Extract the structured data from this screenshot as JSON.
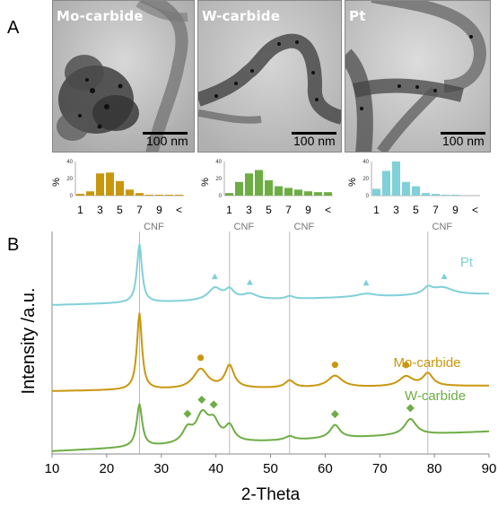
{
  "panel_labels": {
    "a": "A",
    "b": "B"
  },
  "tem_images": [
    {
      "label": "Mo-carbide",
      "scale": "100 nm"
    },
    {
      "label": "W-carbide",
      "scale": "100 nm"
    },
    {
      "label": "Pt",
      "scale": "100 nm"
    }
  ],
  "colors": {
    "mo": "#C9970E",
    "w": "#6DAD44",
    "pt": "#80D0D8",
    "cnf": "#AAAAAA"
  },
  "chart_data": [
    {
      "type": "bar",
      "title": "",
      "ylabel": "%",
      "ylim": [
        0,
        40
      ],
      "yticks": [
        "0",
        "20",
        "40"
      ],
      "categories": [
        "1",
        "2",
        "3",
        "4",
        "5",
        "6",
        "7",
        "8",
        "9",
        "10",
        "<"
      ],
      "xtick_labels": [
        "1",
        "3",
        "5",
        "7",
        "9",
        "<"
      ],
      "values": [
        2,
        5,
        26,
        27,
        17,
        7,
        3,
        1,
        1,
        1,
        1
      ],
      "color": "#C9970E"
    },
    {
      "type": "bar",
      "title": "",
      "ylabel": "%",
      "ylim": [
        0,
        40
      ],
      "yticks": [
        "0",
        "20",
        "40"
      ],
      "categories": [
        "1",
        "2",
        "3",
        "4",
        "5",
        "6",
        "7",
        "8",
        "9",
        "10",
        "<"
      ],
      "xtick_labels": [
        "1",
        "3",
        "5",
        "7",
        "9",
        "<"
      ],
      "values": [
        3,
        16,
        26,
        30,
        18,
        11,
        9,
        7,
        5,
        4,
        4
      ],
      "color": "#6DAD44"
    },
    {
      "type": "bar",
      "title": "",
      "ylabel": "%",
      "ylim": [
        0,
        40
      ],
      "yticks": [
        "0",
        "20",
        "40"
      ],
      "categories": [
        "1",
        "2",
        "3",
        "4",
        "5",
        "6",
        "7",
        "8",
        "9",
        "10",
        "<"
      ],
      "xtick_labels": [
        "1",
        "3",
        "5",
        "7",
        "9",
        "<"
      ],
      "values": [
        8,
        29,
        40,
        16,
        11,
        3,
        2,
        1,
        1,
        0,
        0
      ],
      "color": "#80D0D8"
    },
    {
      "type": "line",
      "xlabel": "2-Theta",
      "ylabel": "Intensity /a.u.",
      "xlim": [
        10,
        90
      ],
      "xticks": [
        10,
        20,
        30,
        40,
        50,
        60,
        70,
        80,
        90
      ],
      "yaxis_ticks": false,
      "reference_lines": [
        {
          "x": 26.0,
          "label": "CNF"
        },
        {
          "x": 42.5,
          "label": "CNF"
        },
        {
          "x": 53.5,
          "label": "CNF"
        },
        {
          "x": 78.8,
          "label": "CNF"
        }
      ],
      "series": [
        {
          "name": "Pt",
          "color": "#80D0D8",
          "baseline": 0.0,
          "peaks": [
            {
              "x": 26.0,
              "h": 6.2,
              "w": 0.55
            },
            {
              "x": 39.8,
              "h": 1.3,
              "w": 1.5
            },
            {
              "x": 42.5,
              "h": 1.0,
              "w": 1.0
            },
            {
              "x": 46.2,
              "h": 0.6,
              "w": 1.6
            },
            {
              "x": 53.5,
              "h": 0.3,
              "w": 0.8
            },
            {
              "x": 67.5,
              "h": 0.35,
              "w": 2.2
            },
            {
              "x": 78.8,
              "h": 0.7,
              "w": 1.0
            },
            {
              "x": 81.5,
              "h": 0.8,
              "w": 2.4
            }
          ],
          "markers": [
            {
              "x": 39.8,
              "shape": "triangle"
            },
            {
              "x": 46.2,
              "shape": "triangle"
            },
            {
              "x": 67.5,
              "shape": "triangle"
            },
            {
              "x": 81.8,
              "shape": "triangle"
            }
          ]
        },
        {
          "name": "Mo-carbide",
          "color": "#C9970E",
          "baseline": 0.0,
          "peaks": [
            {
              "x": 26.0,
              "h": 8.5,
              "w": 0.55
            },
            {
              "x": 37.2,
              "h": 2.2,
              "w": 1.6
            },
            {
              "x": 42.5,
              "h": 2.5,
              "w": 1.0
            },
            {
              "x": 53.5,
              "h": 0.8,
              "w": 1.0
            },
            {
              "x": 61.8,
              "h": 1.3,
              "w": 1.6
            },
            {
              "x": 74.8,
              "h": 1.1,
              "w": 1.5
            },
            {
              "x": 78.8,
              "h": 1.4,
              "w": 1.1
            }
          ],
          "markers": [
            {
              "x": 37.2,
              "shape": "circle"
            },
            {
              "x": 61.8,
              "shape": "circle"
            },
            {
              "x": 74.8,
              "shape": "circle"
            }
          ]
        },
        {
          "name": "W-carbide",
          "color": "#6DAD44",
          "baseline": 0.0,
          "peaks": [
            {
              "x": 26.0,
              "h": 4.5,
              "w": 0.6
            },
            {
              "x": 34.8,
              "h": 1.4,
              "w": 1.1
            },
            {
              "x": 37.5,
              "h": 2.9,
              "w": 1.4
            },
            {
              "x": 39.6,
              "h": 1.9,
              "w": 1.2
            },
            {
              "x": 42.5,
              "h": 1.6,
              "w": 1.0
            },
            {
              "x": 53.5,
              "h": 0.4,
              "w": 1.0
            },
            {
              "x": 61.8,
              "h": 1.4,
              "w": 1.1
            },
            {
              "x": 75.6,
              "h": 1.7,
              "w": 1.3
            }
          ],
          "markers": [
            {
              "x": 34.8,
              "shape": "diamond"
            },
            {
              "x": 37.4,
              "shape": "diamond"
            },
            {
              "x": 39.6,
              "shape": "diamond"
            },
            {
              "x": 61.8,
              "shape": "diamond"
            },
            {
              "x": 75.6,
              "shape": "diamond"
            }
          ]
        }
      ]
    }
  ]
}
